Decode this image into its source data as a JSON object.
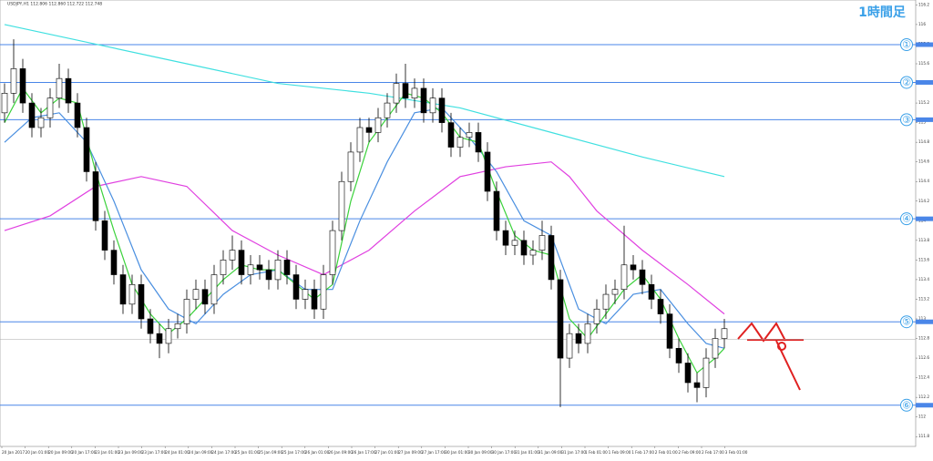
{
  "chart_data": {
    "type": "candlestick",
    "header": "USDJPY,H1 112.806 112.860 112.722 112.748",
    "title": "1時間足",
    "ylim": [
      111.7,
      116.25
    ],
    "yticks": [
      111.8,
      112.0,
      112.2,
      112.4,
      112.6,
      112.8,
      113.0,
      113.2,
      113.4,
      113.6,
      113.8,
      114.0,
      114.2,
      114.4,
      114.6,
      114.8,
      115.0,
      115.2,
      115.4,
      115.6,
      115.8,
      116.0,
      116.2
    ],
    "x_labels": [
      "20 Jan 2017",
      "20 Jan 01:00",
      "20 Jan 09:00",
      "20 Jan 17:00",
      "23 Jan 01:00",
      "23 Jan 09:00",
      "23 Jan 17:00",
      "24 Jan 01:00",
      "24 Jan 09:00",
      "24 Jan 17:00",
      "25 Jan 01:00",
      "25 Jan 09:00",
      "25 Jan 17:00",
      "26 Jan 01:00",
      "26 Jan 09:00",
      "26 Jan 17:00",
      "27 Jan 01:00",
      "27 Jan 09:00",
      "27 Jan 17:00",
      "30 Jan 01:00",
      "30 Jan 09:00",
      "30 Jan 17:00",
      "31 Jan 01:00",
      "31 Jan 09:00",
      "31 Jan 17:00",
      "1 Feb 01:00",
      "1 Feb 09:00",
      "1 Feb 17:00",
      "2 Feb 01:00",
      "2 Feb 09:00",
      "2 Feb 17:00",
      "3 Feb 01:00"
    ],
    "open": [
      115.1,
      115.3,
      115.55,
      115.2,
      114.95,
      115.05,
      115.25,
      115.45,
      115.2,
      114.95,
      114.5,
      114.0,
      113.7,
      113.45,
      113.15,
      113.35,
      113.0,
      112.85,
      112.75,
      112.9,
      112.95,
      113.2,
      113.3,
      113.15,
      113.45,
      113.6,
      113.7,
      113.45,
      113.55,
      113.5,
      113.4,
      113.6,
      113.45,
      113.2,
      113.3,
      113.1,
      113.45,
      113.9,
      114.4,
      114.7,
      114.95,
      114.9,
      115.05,
      115.2,
      115.4,
      115.25,
      115.35,
      115.1,
      115.25,
      115.0,
      114.75,
      114.85,
      114.9,
      114.7,
      114.3,
      113.9,
      113.75,
      113.8,
      113.65,
      113.7,
      113.85,
      113.4,
      112.6,
      112.85,
      112.75,
      112.95,
      113.1,
      113.25,
      113.3,
      113.55,
      113.5,
      113.35,
      113.2,
      113.05,
      112.7,
      112.55,
      112.35,
      112.3,
      112.6,
      112.8
    ],
    "high": [
      115.4,
      115.85,
      115.65,
      115.3,
      115.15,
      115.35,
      115.6,
      115.55,
      115.3,
      115.05,
      114.6,
      114.1,
      113.8,
      113.55,
      113.45,
      113.45,
      113.1,
      112.95,
      113.0,
      113.05,
      113.3,
      113.4,
      113.4,
      113.55,
      113.7,
      113.85,
      113.8,
      113.65,
      113.65,
      113.6,
      113.7,
      113.7,
      113.55,
      113.4,
      113.4,
      113.55,
      114.0,
      114.5,
      114.8,
      115.05,
      115.05,
      115.15,
      115.3,
      115.5,
      115.6,
      115.45,
      115.45,
      115.35,
      115.35,
      115.1,
      114.95,
      115.0,
      115.0,
      114.8,
      114.4,
      114.0,
      113.9,
      113.9,
      113.8,
      114.0,
      113.95,
      113.5,
      112.95,
      112.95,
      113.05,
      113.2,
      113.35,
      113.4,
      113.95,
      113.65,
      113.6,
      113.45,
      113.3,
      113.15,
      112.8,
      112.65,
      112.45,
      112.7,
      112.9,
      113.0
    ],
    "low": [
      115.0,
      115.2,
      115.1,
      114.85,
      114.85,
      114.95,
      115.15,
      115.1,
      114.85,
      114.4,
      113.9,
      113.6,
      113.35,
      113.05,
      113.05,
      112.9,
      112.75,
      112.6,
      112.65,
      112.8,
      112.85,
      113.1,
      113.05,
      113.05,
      113.35,
      113.5,
      113.35,
      113.35,
      113.4,
      113.3,
      113.3,
      113.35,
      113.1,
      113.1,
      113.0,
      113.0,
      113.35,
      113.8,
      114.3,
      114.6,
      114.8,
      114.8,
      114.95,
      115.1,
      115.15,
      115.15,
      115.0,
      115.0,
      114.9,
      114.65,
      114.65,
      114.75,
      114.6,
      114.2,
      113.8,
      113.65,
      113.65,
      113.55,
      113.55,
      113.6,
      113.3,
      112.1,
      112.5,
      112.65,
      112.65,
      112.85,
      113.0,
      113.15,
      113.2,
      113.4,
      113.25,
      113.1,
      112.95,
      112.6,
      112.45,
      112.25,
      112.15,
      112.2,
      112.5,
      112.7
    ],
    "close": [
      115.3,
      115.55,
      115.2,
      114.95,
      115.05,
      115.25,
      115.45,
      115.2,
      114.95,
      114.5,
      114.0,
      113.7,
      113.45,
      113.15,
      113.35,
      113.0,
      112.85,
      112.75,
      112.9,
      112.95,
      113.2,
      113.3,
      113.15,
      113.45,
      113.6,
      113.7,
      113.45,
      113.55,
      113.5,
      113.4,
      113.6,
      113.45,
      113.2,
      113.3,
      113.1,
      113.45,
      113.9,
      114.4,
      114.7,
      114.95,
      114.9,
      115.05,
      115.2,
      115.4,
      115.25,
      115.35,
      115.1,
      115.25,
      115.0,
      114.75,
      114.85,
      114.9,
      114.7,
      114.3,
      113.9,
      113.75,
      113.8,
      113.65,
      113.7,
      113.85,
      113.4,
      112.6,
      112.85,
      112.75,
      112.95,
      113.1,
      113.25,
      113.3,
      113.55,
      113.5,
      113.35,
      113.2,
      113.05,
      112.7,
      112.55,
      112.35,
      112.3,
      112.6,
      112.8,
      112.9
    ],
    "series": [
      {
        "color": "#40e0e0",
        "x": [
          0,
          10,
          20,
          30,
          40,
          50,
          60,
          70,
          79
        ],
        "values": [
          116.0,
          115.8,
          115.6,
          115.4,
          115.3,
          115.15,
          114.9,
          114.65,
          114.45
        ]
      },
      {
        "color": "#e040e0",
        "x": [
          0,
          5,
          10,
          15,
          20,
          25,
          30,
          35,
          40,
          45,
          50,
          55,
          60,
          62,
          65,
          70,
          75,
          79
        ],
        "values": [
          113.9,
          114.05,
          114.35,
          114.45,
          114.35,
          113.9,
          113.65,
          113.45,
          113.7,
          114.1,
          114.45,
          114.55,
          114.6,
          114.45,
          114.1,
          113.7,
          113.35,
          113.05
        ]
      },
      {
        "color": "#4a8fe0",
        "x": [
          0,
          3,
          6,
          9,
          12,
          15,
          18,
          21,
          24,
          27,
          30,
          33,
          36,
          39,
          42,
          45,
          48,
          51,
          54,
          57,
          60,
          63,
          66,
          69,
          72,
          75,
          77,
          79
        ],
        "values": [
          114.8,
          115.05,
          115.1,
          114.8,
          114.2,
          113.5,
          113.1,
          112.95,
          113.25,
          113.45,
          113.5,
          113.3,
          113.3,
          114.0,
          114.6,
          115.1,
          115.15,
          114.85,
          114.5,
          114.0,
          113.85,
          113.1,
          112.95,
          113.25,
          113.3,
          112.95,
          112.75,
          112.7
        ]
      },
      {
        "color": "#3cd23c",
        "x": [
          0,
          2,
          4,
          6,
          8,
          10,
          12,
          14,
          16,
          18,
          20,
          22,
          24,
          26,
          28,
          30,
          32,
          34,
          36,
          38,
          40,
          42,
          44,
          46,
          48,
          50,
          52,
          54,
          56,
          58,
          60,
          62,
          64,
          66,
          68,
          70,
          72,
          74,
          76,
          78,
          79
        ],
        "values": [
          115.0,
          115.35,
          115.1,
          115.25,
          115.2,
          114.5,
          113.9,
          113.35,
          113.05,
          112.85,
          113.0,
          113.2,
          113.4,
          113.55,
          113.5,
          113.5,
          113.35,
          113.2,
          113.35,
          114.2,
          114.8,
          115.05,
          115.3,
          115.25,
          115.1,
          114.85,
          114.8,
          114.3,
          113.85,
          113.7,
          113.65,
          113.0,
          112.8,
          113.05,
          113.3,
          113.45,
          113.2,
          112.8,
          112.45,
          112.6,
          112.7
        ]
      }
    ],
    "levels": [
      {
        "label": "①",
        "value": 115.795
      },
      {
        "label": "②",
        "value": 115.41
      },
      {
        "label": "③",
        "value": 115.03
      },
      {
        "label": "④",
        "value": 114.02
      },
      {
        "label": "⑤",
        "value": 112.97
      },
      {
        "label": "⑥",
        "value": 112.12
      }
    ],
    "current": 112.79
  }
}
